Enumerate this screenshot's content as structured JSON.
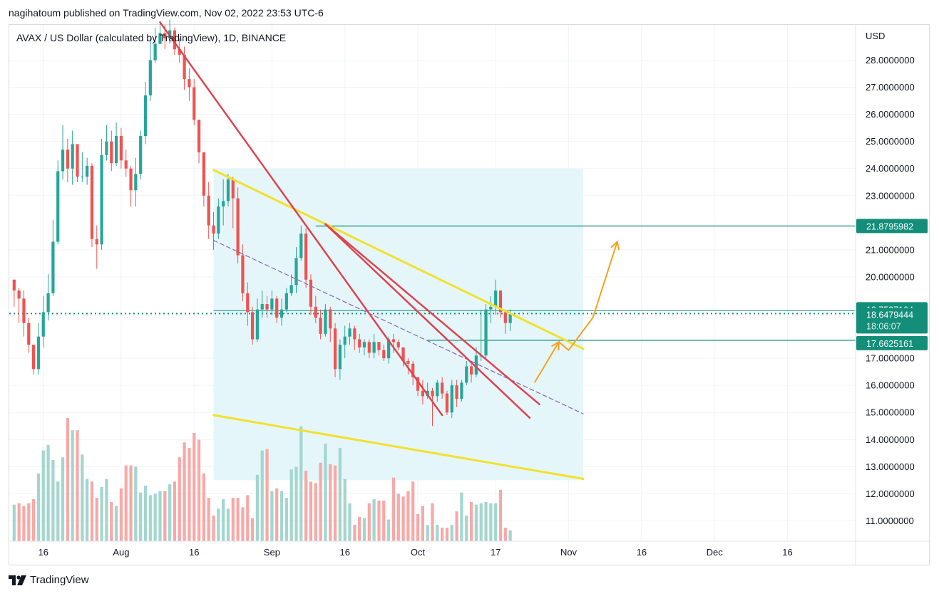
{
  "header": {
    "publisher_line": "nagihatoum published on TradingView.com, Nov 02, 2022 23:53 UTC-6",
    "symbol_line": "AVAX / US Dollar (calculated by TradingView), 1D, BINANCE"
  },
  "footer": {
    "brand": "TradingView",
    "logo_icon": "tradingview-logo-icon"
  },
  "colors": {
    "up": "#26a69a",
    "down": "#ef5350",
    "vol_up": "#a3d6cf",
    "vol_down": "#f7a9a7",
    "channel_line": "#f2e12c",
    "channel_fill": "#e5f6fa",
    "trendline": "#e0434e",
    "arrow": "#f7a21b",
    "level_line": "#138e79",
    "dashed_mid": "#8665b7"
  },
  "chart_data": {
    "type": "candlestick",
    "symbol": "AVAX / US Dollar (calculated by TradingView)",
    "interval": "1D",
    "exchange": "BINANCE",
    "currency_label": "USD",
    "ylim": [
      10.25,
      29.3
    ],
    "x_range": [
      "2022-07-09",
      "2022-12-30"
    ],
    "y_ticks": [
      "28.0000000",
      "27.0000000",
      "26.0000000",
      "25.0000000",
      "24.0000000",
      "23.0000000",
      "21.0000000",
      "20.0000000",
      "17.0000000",
      "16.0000000",
      "15.0000000",
      "14.0000000",
      "13.0000000",
      "12.0000000",
      "11.0000000"
    ],
    "y_tick_values": [
      28,
      27,
      26,
      25,
      24,
      23,
      21,
      20,
      17,
      16,
      15,
      14,
      13,
      12,
      11
    ],
    "x_ticks": [
      {
        "label": "16",
        "date": "2022-07-16"
      },
      {
        "label": "Aug",
        "date": "2022-08-01"
      },
      {
        "label": "16",
        "date": "2022-08-16"
      },
      {
        "label": "Sep",
        "date": "2022-09-01"
      },
      {
        "label": "16",
        "date": "2022-09-16"
      },
      {
        "label": "Oct",
        "date": "2022-10-01"
      },
      {
        "label": "17",
        "date": "2022-10-17"
      },
      {
        "label": "Nov",
        "date": "2022-11-01"
      },
      {
        "label": "16",
        "date": "2022-11-16"
      },
      {
        "label": "Dec",
        "date": "2022-12-01"
      },
      {
        "label": "16",
        "date": "2022-12-16"
      }
    ],
    "first_date": "2022-07-10",
    "closes": [
      19.5,
      19.2,
      18.3,
      17.5,
      16.6,
      17.8,
      18.7,
      19.4,
      21.3,
      23.9,
      24.7,
      24.0,
      24.9,
      23.7,
      23.7,
      24.1,
      21.4,
      21.2,
      24.5,
      25.0,
      24.2,
      25.2,
      24.3,
      24.0,
      23.2,
      23.8,
      25.2,
      26.7,
      28.0,
      28.6,
      29.0,
      28.8,
      29.1,
      28.4,
      28.2,
      27.3,
      27.0,
      25.8,
      24.6,
      23.0,
      21.9,
      21.6,
      22.6,
      22.8,
      23.6,
      22.9,
      20.8,
      19.4,
      18.7,
      17.7,
      18.8,
      19.0,
      18.8,
      19.2,
      18.5,
      18.8,
      19.4,
      19.7,
      20.7,
      21.6,
      19.9,
      18.9,
      18.5,
      17.9,
      18.8,
      18.1,
      16.6,
      17.5,
      17.8,
      18.1,
      17.7,
      17.4,
      17.6,
      17.2,
      17.6,
      17.3,
      17.0,
      17.7,
      17.6,
      17.4,
      16.9,
      16.8,
      16.3,
      15.8,
      15.6,
      15.8,
      15.6,
      16.1,
      15.7,
      15.0,
      16.0,
      15.5,
      16.1,
      16.7,
      16.4,
      17.1,
      17.1,
      18.8,
      18.9,
      19.5,
      18.7,
      18.3,
      18.65
    ],
    "closes_note": "one daily close per day starting from first_date",
    "highs": [
      19.9,
      19.6,
      19.5,
      18.5,
      17.4,
      18.3,
      19.3,
      20.1,
      22.1,
      24.3,
      25.6,
      25.1,
      25.4,
      24.8,
      24.6,
      24.4,
      24.2,
      21.9,
      25.1,
      25.6,
      25.4,
      25.7,
      25.5,
      24.7,
      24.1,
      24.4,
      25.4,
      27.2,
      28.8,
      29.2,
      29.4,
      29.3,
      29.5,
      29.2,
      28.8,
      28.5,
      27.7,
      27.3,
      25.5,
      24.6,
      23.5,
      22.4,
      22.9,
      23.6,
      23.8,
      23.7,
      23.3,
      21.2,
      19.8,
      18.9,
      19.2,
      19.5,
      19.3,
      19.5,
      19.3,
      19.2,
      19.6,
      20.1,
      21.1,
      21.9,
      21.8,
      20.1,
      19.3,
      18.8,
      19.0,
      18.9,
      18.3,
      17.7,
      18.2,
      18.3,
      18.2,
      17.9,
      17.7,
      17.7,
      17.9,
      17.6,
      17.5,
      17.8,
      17.9,
      17.7,
      17.4,
      17.0,
      16.9,
      16.3,
      16.2,
      16.1,
      15.9,
      16.2,
      16.3,
      15.8,
      16.2,
      16.2,
      16.2,
      16.9,
      16.9,
      17.4,
      18.8,
      19.0,
      19.3,
      19.9,
      19.5,
      18.8,
      18.8
    ],
    "lows": [
      18.9,
      18.3,
      17.8,
      17.2,
      16.4,
      16.4,
      17.4,
      18.4,
      19.3,
      21.2,
      23.6,
      23.5,
      23.4,
      23.5,
      23.5,
      23.4,
      21.1,
      20.3,
      21.0,
      24.3,
      23.9,
      24.1,
      24.0,
      23.7,
      22.6,
      22.6,
      23.6,
      24.9,
      26.5,
      27.9,
      28.6,
      28.4,
      28.6,
      28.2,
      27.9,
      26.9,
      26.5,
      25.6,
      24.2,
      22.6,
      21.4,
      21.0,
      21.4,
      21.9,
      22.6,
      21.8,
      20.5,
      19.1,
      18.2,
      17.5,
      17.6,
      18.5,
      18.5,
      18.6,
      18.3,
      18.2,
      18.7,
      19.3,
      19.4,
      20.6,
      19.6,
      18.6,
      18.3,
      17.7,
      17.8,
      17.6,
      16.3,
      16.2,
      17.0,
      17.5,
      17.3,
      17.2,
      17.1,
      17.0,
      17.0,
      17.1,
      16.9,
      16.8,
      17.2,
      17.3,
      16.7,
      16.4,
      16.0,
      15.6,
      15.3,
      15.5,
      14.5,
      15.4,
      15.5,
      14.9,
      14.8,
      15.2,
      15.4,
      16.0,
      16.1,
      16.3,
      16.9,
      17.0,
      18.3,
      18.6,
      18.5,
      17.9,
      18.0
    ],
    "volume_note": "volume bars, relative values 0-1",
    "volumes": [
      0.27,
      0.28,
      0.26,
      0.28,
      0.31,
      0.5,
      0.67,
      0.71,
      0.6,
      0.44,
      0.62,
      0.91,
      0.82,
      0.82,
      0.64,
      0.46,
      0.44,
      0.32,
      0.4,
      0.46,
      0.29,
      0.26,
      0.39,
      0.56,
      0.56,
      0.55,
      0.36,
      0.41,
      0.34,
      0.35,
      0.37,
      0.37,
      0.42,
      0.44,
      0.62,
      0.73,
      0.69,
      0.8,
      0.75,
      0.5,
      0.32,
      0.19,
      0.24,
      0.31,
      0.24,
      0.32,
      0.32,
      0.25,
      0.34,
      0.17,
      0.49,
      0.67,
      0.68,
      0.37,
      0.39,
      0.37,
      0.32,
      0.53,
      0.55,
      0.85,
      0.52,
      0.44,
      0.43,
      0.58,
      0.72,
      0.57,
      0.56,
      0.69,
      0.46,
      0.28,
      0.12,
      0.18,
      0.17,
      0.28,
      0.31,
      0.3,
      0.3,
      0.16,
      0.47,
      0.35,
      0.33,
      0.37,
      0.44,
      0.2,
      0.26,
      0.12,
      0.28,
      0.12,
      0.1,
      0.1,
      0.12,
      0.22,
      0.36,
      0.19,
      0.29,
      0.27,
      0.28,
      0.29,
      0.28,
      0.28,
      0.38,
      0.1,
      0.08
    ],
    "current_price": 18.6479444,
    "countdown": "18:06:07",
    "price_labels": [
      {
        "value": 21.8795982,
        "text": "21.8795982"
      },
      {
        "value": 18.7537104,
        "text": "18.7537104"
      },
      {
        "value": 18.6479444,
        "text": "18.6479444"
      },
      {
        "value": 17.6625161,
        "text": "17.6625161"
      }
    ],
    "drawings": {
      "channel_upper": [
        {
          "date": "2022-08-20",
          "price": 23.95
        },
        {
          "date": "2022-11-04",
          "price": 17.35
        }
      ],
      "channel_lower": [
        {
          "date": "2022-08-20",
          "price": 14.9
        },
        {
          "date": "2022-11-04",
          "price": 12.55
        }
      ],
      "channel_mid_dashed": [
        {
          "date": "2022-08-20",
          "price": 21.35
        },
        {
          "date": "2022-11-04",
          "price": 14.95
        }
      ],
      "channel_fill_box": [
        {
          "date": "2022-08-20",
          "price": 24.0
        },
        {
          "date": "2022-11-04",
          "price": 12.5
        }
      ],
      "trendline_1": [
        {
          "date": "2022-08-09",
          "price": 29.4
        },
        {
          "date": "2022-10-06",
          "price": 14.9
        }
      ],
      "trendline_2": [
        {
          "date": "2022-09-12",
          "price": 21.95
        },
        {
          "date": "2022-10-24",
          "price": 14.8
        }
      ],
      "trendline_3": [
        {
          "date": "2022-09-12",
          "price": 21.95
        },
        {
          "date": "2022-10-26",
          "price": 15.3
        }
      ],
      "level_21_88": {
        "from": "2022-09-10",
        "price": 21.8795982
      },
      "level_17_66": {
        "from": "2022-10-03",
        "price": 17.6625161
      },
      "arrow_path": [
        {
          "date": "2022-10-25",
          "price": 16.1
        },
        {
          "date": "2022-10-30",
          "price": 17.6
        },
        {
          "date": "2022-11-01",
          "price": 17.3
        },
        {
          "date": "2022-11-06",
          "price": 18.5
        },
        {
          "date": "2022-11-11",
          "price": 21.3
        }
      ]
    }
  }
}
